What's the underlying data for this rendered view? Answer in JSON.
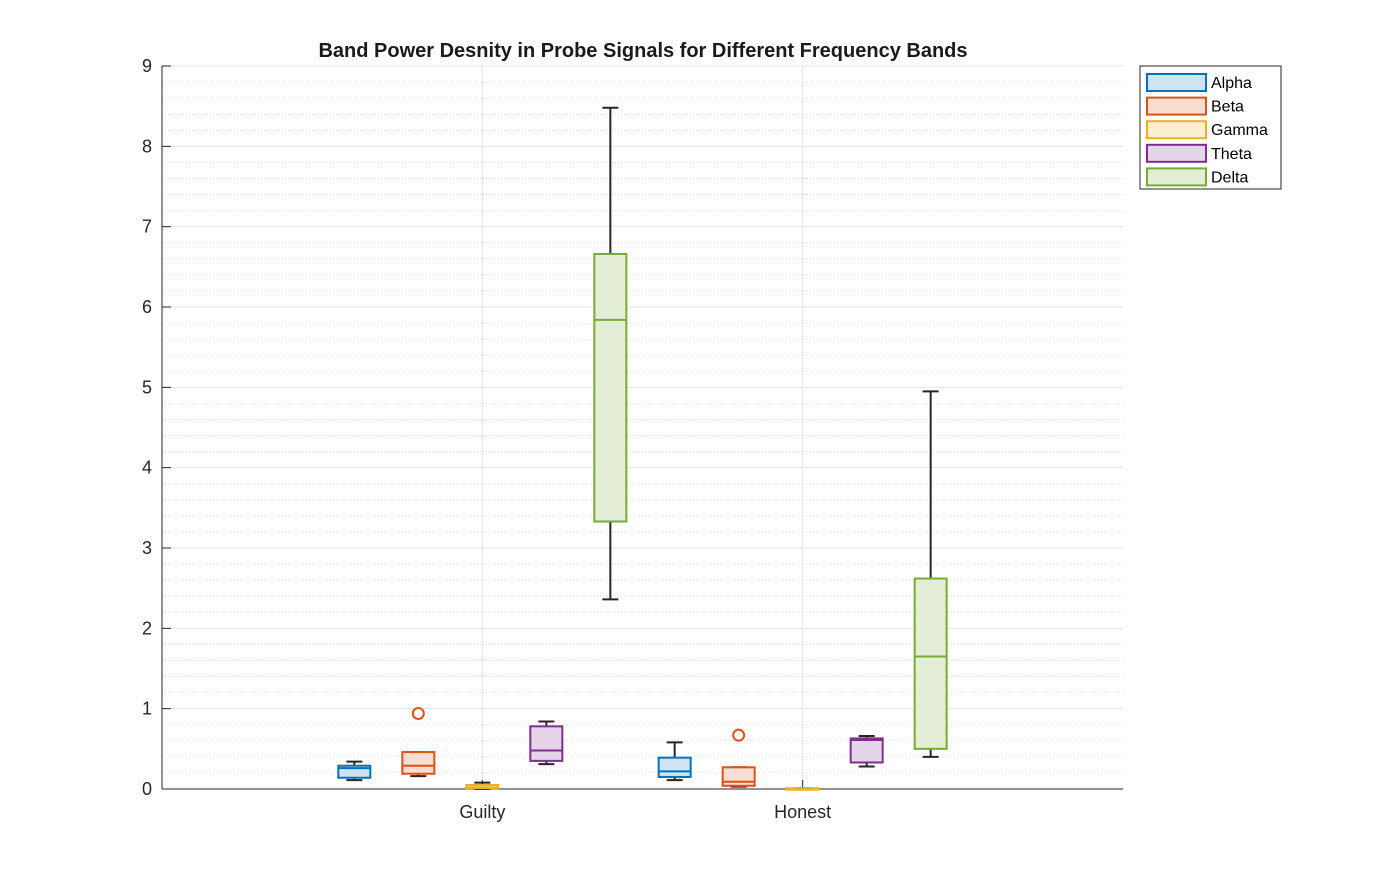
{
  "chart_data": {
    "type": "box",
    "title": "Band Power Desnity in Probe Signals for Different Frequency Bands",
    "xlabel": "",
    "ylabel": "",
    "categories": [
      "Guilty",
      "Honest"
    ],
    "ylim": [
      0,
      9
    ],
    "yticks": [
      0,
      1,
      2,
      3,
      4,
      5,
      6,
      7,
      8,
      9
    ],
    "grid": true,
    "minor_grid": true,
    "legend_position": "top-right outside",
    "series": [
      {
        "name": "Alpha",
        "color": "#0072BD",
        "fill": "#cfe3f2",
        "boxes": [
          {
            "category": "Guilty",
            "whisker_low": 0.11,
            "q1": 0.14,
            "median": 0.26,
            "q3": 0.29,
            "whisker_high": 0.34,
            "outliers": []
          },
          {
            "category": "Honest",
            "whisker_low": 0.11,
            "q1": 0.15,
            "median": 0.22,
            "q3": 0.39,
            "whisker_high": 0.58,
            "outliers": []
          }
        ]
      },
      {
        "name": "Beta",
        "color": "#D95319",
        "fill": "#f7ddd1",
        "boxes": [
          {
            "category": "Guilty",
            "whisker_low": 0.16,
            "q1": 0.19,
            "median": 0.29,
            "q3": 0.46,
            "whisker_high": 0.46,
            "outliers": [
              0.94
            ]
          },
          {
            "category": "Honest",
            "whisker_low": 0.03,
            "q1": 0.04,
            "median": 0.09,
            "q3": 0.27,
            "whisker_high": 0.27,
            "outliers": [
              0.67
            ]
          }
        ]
      },
      {
        "name": "Gamma",
        "color": "#EDB120",
        "fill": "#fbefd2",
        "boxes": [
          {
            "category": "Guilty",
            "whisker_low": 0.0,
            "q1": 0.01,
            "median": 0.02,
            "q3": 0.05,
            "whisker_high": 0.08,
            "outliers": []
          },
          {
            "category": "Honest",
            "whisker_low": 0.0,
            "q1": 0.0,
            "median": 0.005,
            "q3": 0.01,
            "whisker_high": 0.01,
            "outliers": []
          }
        ]
      },
      {
        "name": "Theta",
        "color": "#7E2F8E",
        "fill": "#e5d5e8",
        "boxes": [
          {
            "category": "Guilty",
            "whisker_low": 0.31,
            "q1": 0.35,
            "median": 0.48,
            "q3": 0.78,
            "whisker_high": 0.84,
            "outliers": []
          },
          {
            "category": "Honest",
            "whisker_low": 0.28,
            "q1": 0.33,
            "median": 0.61,
            "q3": 0.63,
            "whisker_high": 0.66,
            "outliers": []
          }
        ]
      },
      {
        "name": "Delta",
        "color": "#77AC30",
        "fill": "#e4eed6",
        "boxes": [
          {
            "category": "Guilty",
            "whisker_low": 2.36,
            "q1": 3.33,
            "median": 5.84,
            "q3": 6.66,
            "whisker_high": 8.48,
            "outliers": []
          },
          {
            "category": "Honest",
            "whisker_low": 0.4,
            "q1": 0.5,
            "median": 1.65,
            "q3": 2.62,
            "whisker_high": 4.95,
            "outliers": []
          }
        ]
      }
    ]
  }
}
